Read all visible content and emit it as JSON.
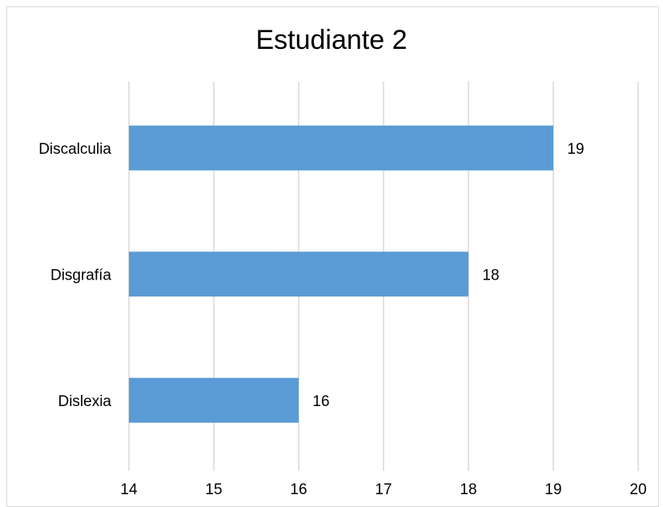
{
  "chart_data": {
    "type": "bar",
    "orientation": "horizontal",
    "title": "Estudiante 2",
    "xlabel": "",
    "ylabel": "",
    "categories": [
      "Discalculia",
      "Disgrafía",
      "Dislexia"
    ],
    "values": [
      19,
      18,
      16
    ],
    "data_labels": [
      "19",
      "18",
      "16"
    ],
    "xlim": [
      14,
      20
    ],
    "xticks": [
      "14",
      "15",
      "16",
      "17",
      "18",
      "19",
      "20"
    ],
    "grid": "vertical",
    "legend": "none",
    "colors": {
      "bar": "#5b9bd5",
      "gridline": "#d9d9d9",
      "text": "#000000"
    }
  }
}
